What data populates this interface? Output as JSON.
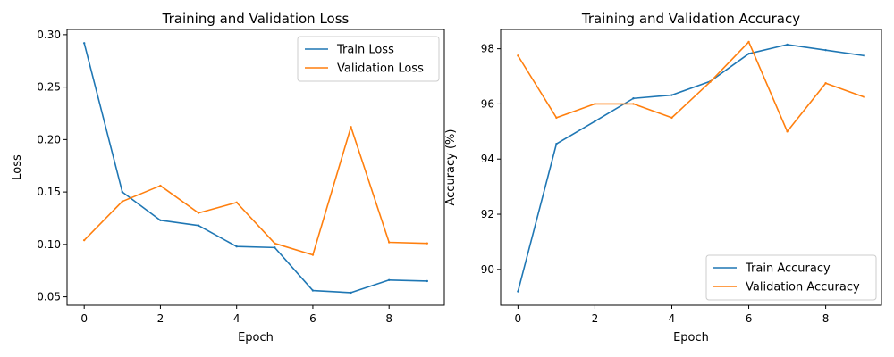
{
  "figure": {
    "background": "#ffffff"
  },
  "chart_data": [
    {
      "type": "line",
      "title": "Training and Validation Loss",
      "xlabel": "Epoch",
      "ylabel": "Loss",
      "x": [
        0,
        1,
        2,
        3,
        4,
        5,
        6,
        7,
        8,
        9
      ],
      "xlim": [
        -0.45,
        9.45
      ],
      "ylim": [
        0.042,
        0.305
      ],
      "xticks": [
        0,
        2,
        4,
        6,
        8
      ],
      "yticks": [
        0.05,
        0.1,
        0.15,
        0.2,
        0.25,
        0.3
      ],
      "ytick_labels": [
        "0.05",
        "0.10",
        "0.15",
        "0.20",
        "0.25",
        "0.30"
      ],
      "legend_position": "top-right",
      "grid": false,
      "series": [
        {
          "name": "Train Loss",
          "color": "#1f77b4",
          "values": [
            0.292,
            0.15,
            0.123,
            0.118,
            0.098,
            0.097,
            0.056,
            0.054,
            0.066,
            0.065
          ]
        },
        {
          "name": "Validation Loss",
          "color": "#ff7f0e",
          "values": [
            0.104,
            0.141,
            0.156,
            0.13,
            0.14,
            0.101,
            0.09,
            0.212,
            0.102,
            0.101
          ]
        }
      ]
    },
    {
      "type": "line",
      "title": "Training and Validation Accuracy",
      "xlabel": "Epoch",
      "ylabel": "Accuracy (%)",
      "x": [
        0,
        1,
        2,
        3,
        4,
        5,
        6,
        7,
        8,
        9
      ],
      "xlim": [
        -0.45,
        9.45
      ],
      "ylim": [
        88.7,
        98.7
      ],
      "xticks": [
        0,
        2,
        4,
        6,
        8
      ],
      "yticks": [
        90,
        92,
        94,
        96,
        98
      ],
      "ytick_labels": [
        "90",
        "92",
        "94",
        "96",
        "98"
      ],
      "legend_position": "bottom-right",
      "grid": false,
      "series": [
        {
          "name": "Train Accuracy",
          "color": "#1f77b4",
          "values": [
            89.2,
            94.55,
            95.37,
            96.2,
            96.32,
            96.82,
            97.82,
            98.15,
            97.95,
            97.75
          ]
        },
        {
          "name": "Validation Accuracy",
          "color": "#ff7f0e",
          "values": [
            97.75,
            95.5,
            96.0,
            96.0,
            95.5,
            96.8,
            98.25,
            95.0,
            96.75,
            96.25
          ]
        }
      ]
    }
  ]
}
